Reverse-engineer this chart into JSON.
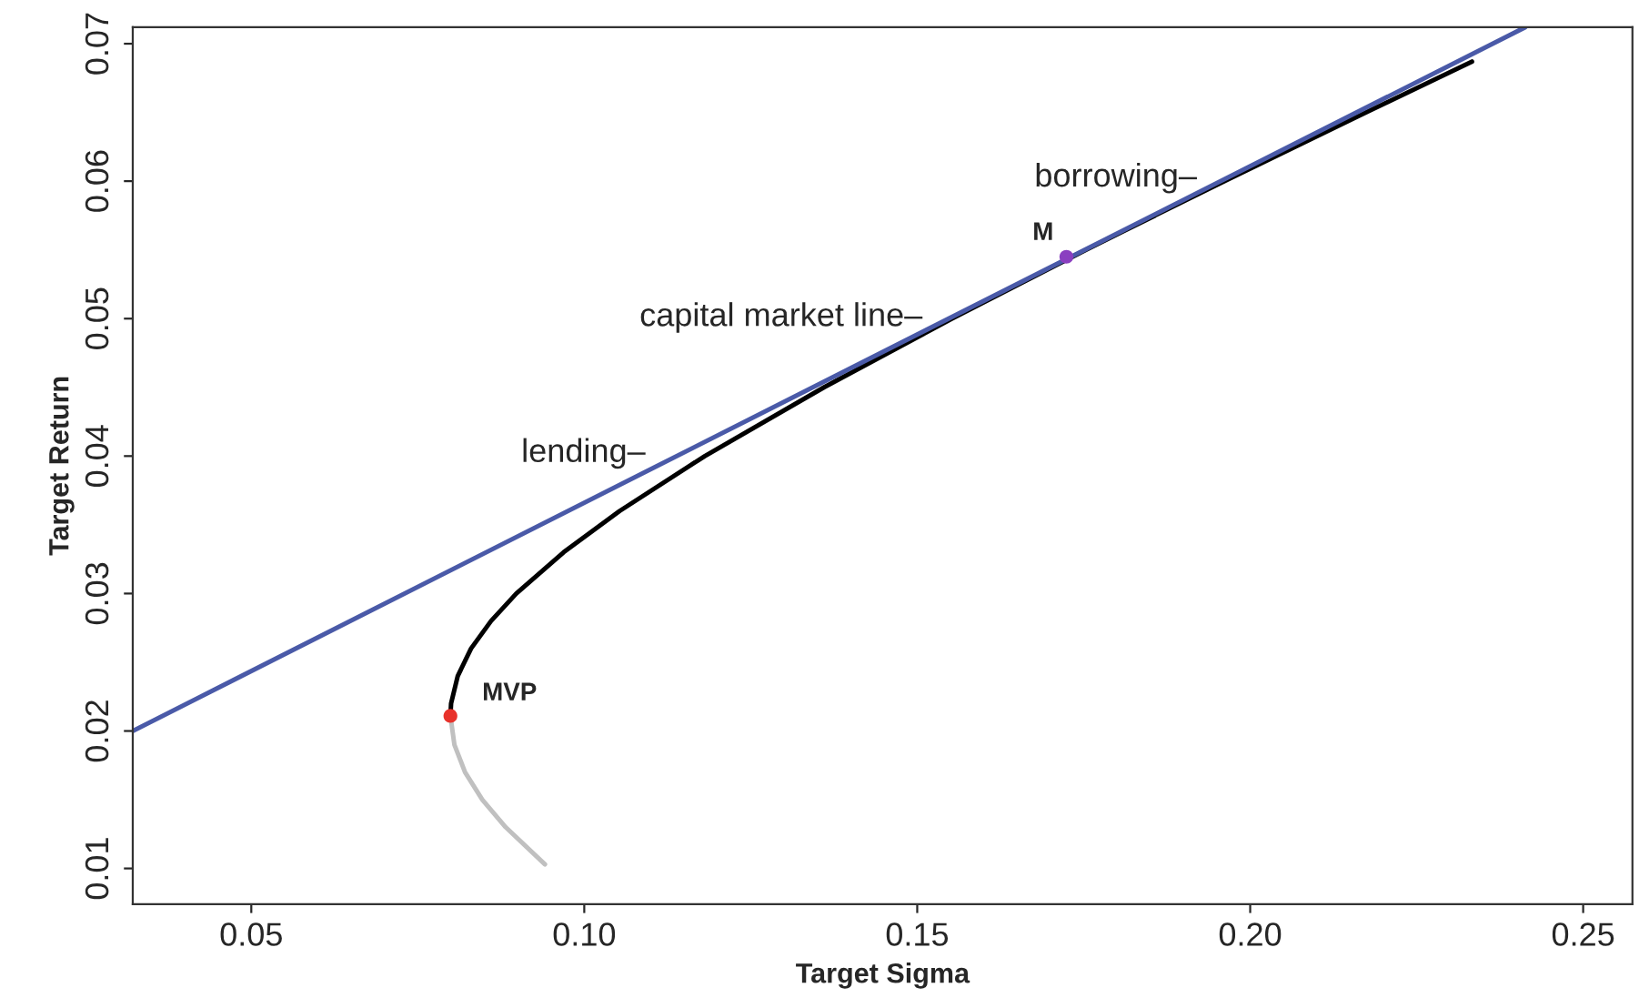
{
  "chart_data": {
    "type": "line",
    "xlabel": "Target Sigma",
    "ylabel": "Target Return",
    "xlim": [
      0.0322,
      0.2574
    ],
    "ylim": [
      0.0074,
      0.0712
    ],
    "xticks": [
      {
        "value": 0.05,
        "label": "0.05"
      },
      {
        "value": 0.1,
        "label": "0.10"
      },
      {
        "value": 0.15,
        "label": "0.15"
      },
      {
        "value": 0.2,
        "label": "0.20"
      },
      {
        "value": 0.25,
        "label": "0.25"
      }
    ],
    "yticks": [
      0.01,
      0.02,
      0.03,
      0.04,
      0.05,
      0.06,
      0.07
    ],
    "grid": false,
    "legend": false,
    "series": [
      {
        "color": "#c0c0c0",
        "x": [
          0.0799,
          0.0805,
          0.0821,
          0.0847,
          0.0882,
          0.0941
        ],
        "values": [
          0.0211,
          0.019,
          0.017,
          0.015,
          0.013,
          0.0103
        ]
      },
      {
        "color": "#000000",
        "x": [
          0.0799,
          0.08,
          0.081,
          0.083,
          0.086,
          0.0898,
          0.0969,
          0.1053,
          0.1181,
          0.136,
          0.1552,
          0.1753,
          0.1961,
          0.2174,
          0.2333
        ],
        "values": [
          0.0211,
          0.022,
          0.024,
          0.026,
          0.028,
          0.03,
          0.033,
          0.036,
          0.04,
          0.045,
          0.05,
          0.055,
          0.06,
          0.065,
          0.0687
        ]
      },
      {
        "color": "#4a5aa8",
        "x": [
          0.0322,
          0.2413
        ],
        "values": [
          0.02,
          0.0712
        ]
      },
      {
        "type": "scatter",
        "color": "#e8322b",
        "x": [
          0.0799
        ],
        "values": [
          0.0211
        ]
      },
      {
        "type": "scatter",
        "color": "#8a3fc0",
        "x": [
          0.1724
        ],
        "values": [
          0.0545
        ]
      }
    ],
    "annotations": [
      "MVP",
      "M",
      "borrowing–",
      "capital market line–",
      "lending–"
    ]
  }
}
